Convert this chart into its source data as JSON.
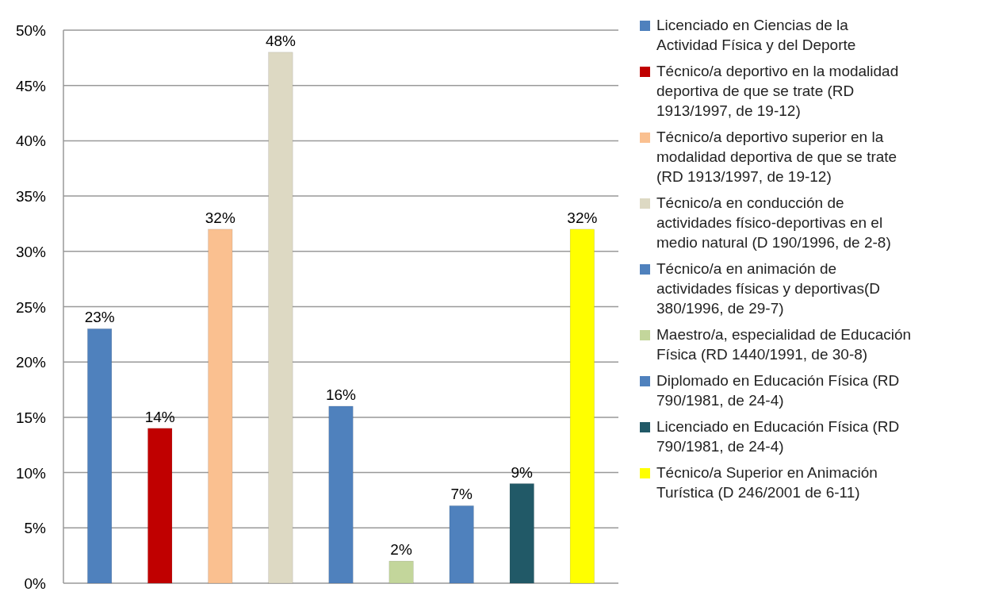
{
  "chart_data": {
    "type": "bar",
    "categories": [
      null,
      null,
      null,
      null,
      null,
      null,
      null,
      null,
      null
    ],
    "series": [
      {
        "name": "Licenciado en Ciencias de la Actividad Física y del Deporte",
        "color": "#4f81bd",
        "values": [
          23,
          null,
          null,
          null,
          null,
          null,
          null,
          null,
          null
        ],
        "value_labels": [
          "23%",
          null,
          null,
          null,
          null,
          null,
          null,
          null,
          null
        ]
      },
      {
        "name": "Técnico/a deportivo en la modalidad deportiva de que se trate (RD 1913/1997, de 19-12)",
        "color": "#c00000",
        "values": [
          null,
          14,
          null,
          null,
          null,
          null,
          null,
          null,
          null
        ],
        "value_labels": [
          null,
          "14%",
          null,
          null,
          null,
          null,
          null,
          null,
          null
        ]
      },
      {
        "name": "Técnico/a deportivo superior en la modalidad deportiva de que se trate (RD 1913/1997, de 19-12)",
        "color": "#fac090",
        "values": [
          null,
          null,
          32,
          null,
          null,
          null,
          null,
          null,
          null
        ],
        "value_labels": [
          null,
          null,
          "32%",
          null,
          null,
          null,
          null,
          null,
          null
        ]
      },
      {
        "name": "Técnico/a en conducción de actividades físico-deportivas en el medio natural (D 190/1996, de 2-8)",
        "color": "#ddd9c3",
        "values": [
          null,
          null,
          null,
          48,
          null,
          null,
          null,
          null,
          null
        ],
        "value_labels": [
          null,
          null,
          null,
          "48%",
          null,
          null,
          null,
          null,
          null
        ]
      },
      {
        "name": "Técnico/a en animación de actividades físicas y deportivas(D 380/1996, de 29-7)",
        "color": "#4f81bd",
        "values": [
          null,
          null,
          null,
          null,
          16,
          null,
          null,
          null,
          null
        ],
        "value_labels": [
          null,
          null,
          null,
          null,
          "16%",
          null,
          null,
          null,
          null
        ]
      },
      {
        "name": "Maestro/a, especialidad de Educación Física (RD 1440/1991, de 30-8)",
        "color": "#c3d69b",
        "values": [
          null,
          null,
          null,
          null,
          null,
          2,
          null,
          null,
          null
        ],
        "value_labels": [
          null,
          null,
          null,
          null,
          null,
          "2%",
          null,
          null,
          null
        ]
      },
      {
        "name": "Diplomado en Educación Física (RD 790/1981, de 24-4)",
        "color": "#4f81bd",
        "values": [
          null,
          null,
          null,
          null,
          null,
          null,
          7,
          null,
          null
        ],
        "value_labels": [
          null,
          null,
          null,
          null,
          null,
          null,
          "7%",
          null,
          null
        ]
      },
      {
        "name": "Licenciado en Educación Física (RD 790/1981, de 24-4)",
        "color": "#215967",
        "values": [
          null,
          null,
          null,
          null,
          null,
          null,
          null,
          9,
          null
        ],
        "value_labels": [
          null,
          null,
          null,
          null,
          null,
          null,
          null,
          "9%",
          null
        ]
      },
      {
        "name": "Técnico/a Superior en Animación Turística (D 246/2001 de 6-11)",
        "color": "#ffff00",
        "values": [
          null,
          null,
          null,
          null,
          null,
          null,
          null,
          null,
          32
        ],
        "value_labels": [
          null,
          null,
          null,
          null,
          null,
          null,
          null,
          null,
          "32%"
        ]
      }
    ],
    "ylim": [
      0,
      50
    ],
    "yticks": [
      {
        "value": 0,
        "label": "0%"
      },
      {
        "value": 5,
        "label": "5%"
      },
      {
        "value": 10,
        "label": "10%"
      },
      {
        "value": 15,
        "label": "15%"
      },
      {
        "value": 20,
        "label": "20%"
      },
      {
        "value": 25,
        "label": "25%"
      },
      {
        "value": 30,
        "label": "30%"
      },
      {
        "value": 35,
        "label": "35%"
      },
      {
        "value": 40,
        "label": "40%"
      },
      {
        "value": 45,
        "label": "45%"
      },
      {
        "value": 50,
        "label": "50%"
      }
    ],
    "grid": "y",
    "legend": "right"
  }
}
